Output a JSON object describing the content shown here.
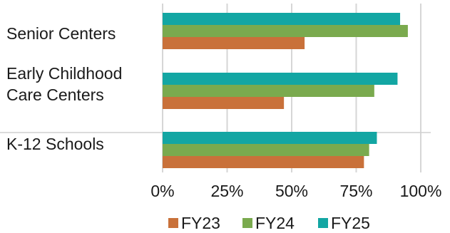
{
  "chart_data": {
    "type": "bar",
    "orientation": "horizontal",
    "title": "",
    "xlabel": "",
    "ylabel": "",
    "categories": [
      [
        "Senior Centers"
      ],
      [
        "Early Childhood",
        "Care Centers"
      ],
      [
        "K-12 Schools"
      ]
    ],
    "series": [
      {
        "name": "FY23",
        "color": "#c9713a",
        "values": [
          55,
          47,
          78
        ]
      },
      {
        "name": "FY24",
        "color": "#7aaa4e",
        "values": [
          95,
          82,
          80
        ]
      },
      {
        "name": "FY25",
        "color": "#13a6a3",
        "values": [
          92,
          91,
          83
        ]
      }
    ],
    "xticks": [
      "0%",
      "25%",
      "50%",
      "75%",
      "100%"
    ],
    "xlim": [
      0,
      100
    ],
    "grid": true,
    "legend_position": "bottom"
  }
}
